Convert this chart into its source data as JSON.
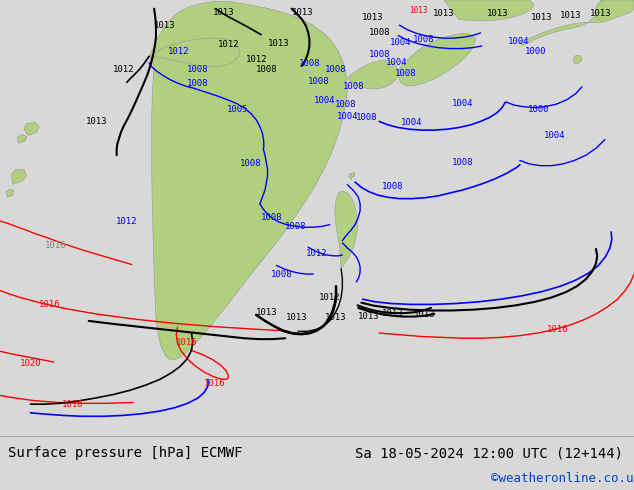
{
  "title_left": "Surface pressure [hPa] ECMWF",
  "title_right": "Sa 18-05-2024 12:00 UTC (12+144)",
  "credit": "©weatheronline.co.uk",
  "bg_color": "#d8d8d8",
  "ocean_color": "#d0d8e0",
  "land_color": "#b0d080",
  "bottom_bar_color": "#f0f0f0",
  "text_color": "#000000",
  "credit_color": "#0044cc",
  "font_family": "monospace",
  "title_fontsize": 10,
  "credit_fontsize": 9,
  "fig_width": 6.34,
  "fig_height": 4.9
}
